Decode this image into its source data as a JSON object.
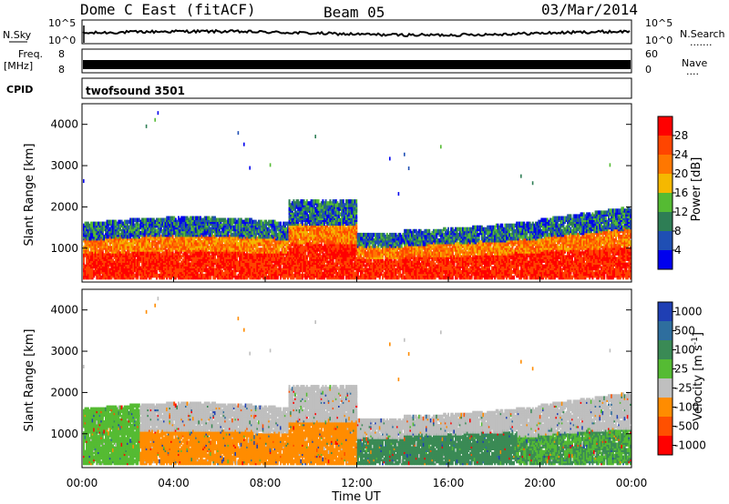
{
  "header": {
    "station": "Dome C East (fitACF)",
    "beam": "Beam 05",
    "date": "03/Mar/2014"
  },
  "strip": {
    "nsky_label": "N.Sky",
    "nsky_top": "10^5",
    "nsky_bottom": "10^0",
    "nsearch_label": "N.Search",
    "nsearch_dots": ".......",
    "freq_label_1": "Freq.",
    "freq_label_2": "[MHz]",
    "freq_ticks": [
      "8",
      "8"
    ],
    "nave_ticks": [
      "60",
      "0"
    ],
    "nave_label": "Nave",
    "nave_dots": "....",
    "cpid_label": "CPID",
    "cpid_value": "twofsound 3501"
  },
  "colors": {
    "power_scale": [
      "#0000ee",
      "#1f4fb4",
      "#2e7e55",
      "#55bb33",
      "#f5b800",
      "#ff7700",
      "#ff4500",
      "#ff0000"
    ],
    "velocity_scale": [
      "#1f3fb4",
      "#2e6e9e",
      "#3a8a55",
      "#55bb33",
      "#bfbfbf",
      "#ff8c00",
      "#ff5000",
      "#ff0000"
    ]
  },
  "chart_data": [
    {
      "type": "heatmap",
      "name": "power",
      "ylabel": "Slant Range [km]",
      "xlabel": "Time UT",
      "x_ticks": [
        "00:00",
        "04:00",
        "08:00",
        "12:00",
        "16:00",
        "20:00",
        "00:00"
      ],
      "y_ticks": [
        "1000",
        "2000",
        "3000",
        "4000"
      ],
      "xlim_hours": [
        0,
        24
      ],
      "ylim_km": [
        180,
        4500
      ],
      "colorbar_label": "Power [dB]",
      "colorbar_ticks": [
        "4",
        "8",
        "12",
        "16",
        "20",
        "24",
        "28"
      ],
      "colorbar_range": [
        0,
        30
      ]
    },
    {
      "type": "heatmap",
      "name": "velocity",
      "ylabel": "Slant Range [km]",
      "xlabel": "Time UT",
      "x_ticks": [
        "00:00",
        "04:00",
        "08:00",
        "12:00",
        "16:00",
        "20:00",
        "00:00"
      ],
      "y_ticks": [
        "1000",
        "2000",
        "3000",
        "4000"
      ],
      "xlim_hours": [
        0,
        24
      ],
      "ylim_km": [
        180,
        4500
      ],
      "colorbar_label": "Velocity [m s^-1]",
      "colorbar_ticks": [
        "1000",
        "500",
        "100",
        "25",
        "-25",
        "-100",
        "-500",
        "-1000"
      ]
    }
  ]
}
